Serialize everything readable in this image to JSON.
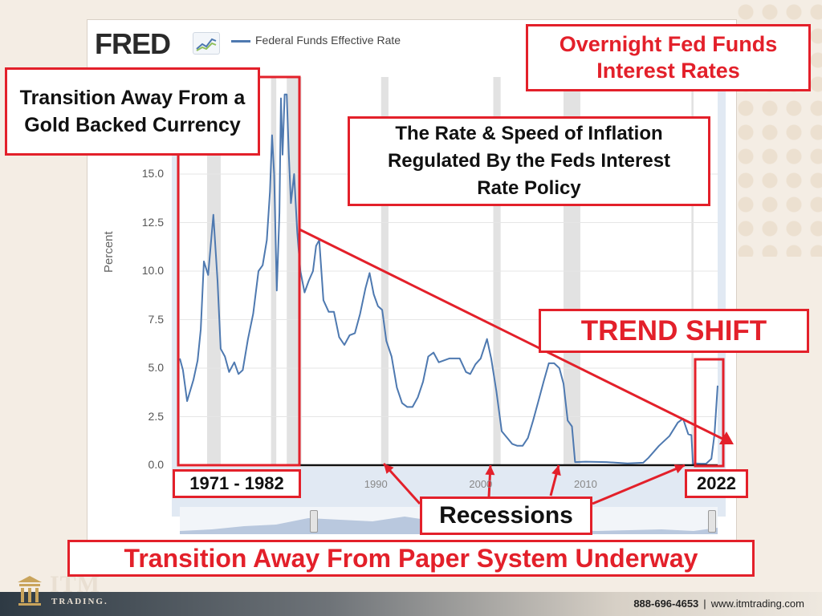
{
  "fred": {
    "logo": "FRED",
    "chart_icon": "line-chart-icon",
    "series_name": "Federal Funds Effective Rate",
    "ylabel": "Percent"
  },
  "annotations": {
    "title": "Overnight Fed Funds Interest Rates",
    "gold": "Transition Away From a Gold Backed Currency",
    "inflation": "The Rate & Speed of Inflation Regulated By the Feds Interest Rate Policy",
    "trend_shift": "TREND SHIFT",
    "period": "1971 - 1982",
    "year_2022": "2022",
    "recessions": "Recessions",
    "paper_system": "Transition Away From Paper System Underway"
  },
  "footer": {
    "brand": "ITM",
    "brand_sub": "TRADING.",
    "phone": "888-696-4653",
    "separator": "|",
    "url": "www.itmtrading.com"
  },
  "colors": {
    "series": "#4e79b0",
    "annotation_red": "#e3202a",
    "recession_band": "#e2e2e2"
  },
  "chart_data": {
    "type": "line",
    "title": "",
    "xlabel": "",
    "ylabel": "Percent",
    "xlim": [
      1971.3,
      2022.6
    ],
    "ylim": [
      0,
      20
    ],
    "y_ticks": [
      0.0,
      2.5,
      5.0,
      7.5,
      10.0,
      12.5,
      15.0
    ],
    "y_tick_labels": [
      "0.0",
      "2.5",
      "5.0",
      "7.5",
      "10.0",
      "12.5",
      "15.0"
    ],
    "x_ticks": [
      1990,
      2000,
      2010
    ],
    "x_tick_labels": [
      "1990",
      "2000",
      "2010"
    ],
    "grid": "horizontal",
    "series": [
      {
        "name": "Federal Funds Effective Rate",
        "x": [
          1971.3,
          1971.6,
          1972.0,
          1972.6,
          1973.0,
          1973.3,
          1973.6,
          1974.0,
          1974.5,
          1974.9,
          1975.2,
          1975.6,
          1976.0,
          1976.5,
          1976.9,
          1977.3,
          1977.8,
          1978.3,
          1978.8,
          1979.2,
          1979.6,
          1979.9,
          1980.1,
          1980.3,
          1980.55,
          1980.8,
          1980.95,
          1981.1,
          1981.3,
          1981.5,
          1981.7,
          1981.9,
          1982.2,
          1982.5,
          1982.8,
          1983.2,
          1983.6,
          1984.0,
          1984.3,
          1984.6,
          1985.0,
          1985.5,
          1986.0,
          1986.5,
          1987.0,
          1987.5,
          1988.0,
          1988.5,
          1989.0,
          1989.4,
          1989.8,
          1990.2,
          1990.6,
          1991.0,
          1991.5,
          1992.0,
          1992.5,
          1993.0,
          1993.5,
          1994.0,
          1994.5,
          1995.0,
          1995.5,
          1996.0,
          1997.0,
          1998.0,
          1998.6,
          1999.0,
          1999.5,
          2000.0,
          2000.6,
          2001.0,
          2001.5,
          2002.0,
          2003.0,
          2003.5,
          2004.0,
          2004.5,
          2005.0,
          2005.5,
          2006.0,
          2006.5,
          2007.0,
          2007.5,
          2007.9,
          2008.3,
          2008.7,
          2009.0,
          2010.0,
          2012.0,
          2014.0,
          2015.5,
          2016.0,
          2017.0,
          2018.0,
          2018.8,
          2019.3,
          2019.8,
          2020.1,
          2020.25,
          2020.5,
          2021.0,
          2021.5,
          2022.0,
          2022.3,
          2022.6
        ],
        "values": [
          5.5,
          4.9,
          3.3,
          4.4,
          5.4,
          7.0,
          10.5,
          9.8,
          12.9,
          9.5,
          6.0,
          5.6,
          4.8,
          5.3,
          4.7,
          4.9,
          6.5,
          7.8,
          10.0,
          10.3,
          11.6,
          14.1,
          17.0,
          15.0,
          9.0,
          13.0,
          18.9,
          16.0,
          19.1,
          19.1,
          16.0,
          13.5,
          15.0,
          12.0,
          10.0,
          8.9,
          9.5,
          10.0,
          11.3,
          11.6,
          8.5,
          7.9,
          7.9,
          6.6,
          6.2,
          6.7,
          6.8,
          7.8,
          9.1,
          9.9,
          8.8,
          8.2,
          8.0,
          6.4,
          5.6,
          4.0,
          3.2,
          3.0,
          3.0,
          3.5,
          4.3,
          5.6,
          5.8,
          5.3,
          5.5,
          5.5,
          4.8,
          4.7,
          5.2,
          5.5,
          6.5,
          5.5,
          3.8,
          1.75,
          1.1,
          1.0,
          1.0,
          1.4,
          2.3,
          3.3,
          4.3,
          5.25,
          5.25,
          5.0,
          4.2,
          2.3,
          2.0,
          0.16,
          0.18,
          0.16,
          0.09,
          0.13,
          0.38,
          1.0,
          1.5,
          2.2,
          2.4,
          1.6,
          1.55,
          0.05,
          0.09,
          0.08,
          0.08,
          0.33,
          1.6,
          4.1
        ]
      }
    ],
    "recessions": [
      [
        1973.9,
        1975.2
      ],
      [
        1980.0,
        1980.5
      ],
      [
        1981.5,
        1982.9
      ],
      [
        1990.5,
        1991.2
      ],
      [
        2001.2,
        2001.9
      ],
      [
        2007.9,
        2009.5
      ],
      [
        2020.1,
        2020.3
      ]
    ]
  }
}
